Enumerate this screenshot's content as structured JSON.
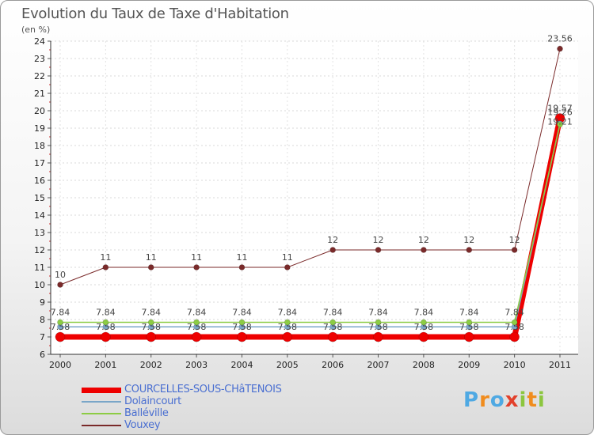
{
  "title": "Evolution du Taux de Taxe d'Habitation",
  "subtitle": "(en %)",
  "logo": {
    "p": "P",
    "r": "r",
    "o": "o",
    "x": "x",
    "i": "i",
    "t": "t",
    "i2": "i"
  },
  "chart_data": {
    "type": "line",
    "title": "Evolution du Taux de Taxe d'Habitation",
    "ylabel": "(en %)",
    "xlabel": "",
    "ylim": [
      6,
      24
    ],
    "yticks": [
      "6",
      "7",
      "8",
      "9",
      "10",
      "11",
      "12",
      "13",
      "14",
      "15",
      "16",
      "17",
      "18",
      "19",
      "20",
      "21",
      "22",
      "23",
      "24"
    ],
    "x": [
      "2000",
      "2001",
      "2002",
      "2003",
      "2004",
      "2005",
      "2006",
      "2007",
      "2008",
      "2009",
      "2010",
      "2011"
    ],
    "grid": true,
    "legend_position": "bottom-left",
    "series": [
      {
        "name": "COURCELLES-SOUS-CHâTENOIS",
        "color": "#ee0000",
        "values": [
          7,
          7,
          7,
          7,
          7,
          7,
          7,
          7,
          7,
          7,
          7,
          19.57
        ],
        "labels": [
          "",
          "",
          "",
          "",
          "",
          "",
          "",
          "",
          "",
          "",
          "",
          "19.57"
        ]
      },
      {
        "name": "Dolaincourt",
        "color": "#7aa6c8",
        "values": [
          7.58,
          7.58,
          7.58,
          7.58,
          7.58,
          7.58,
          7.58,
          7.58,
          7.58,
          7.58,
          7.58,
          19.26
        ],
        "labels": [
          "7.58",
          "7.58",
          "7.58",
          "7.58",
          "7.58",
          "7.58",
          "7.58",
          "7.58",
          "7.58",
          "7.58",
          "7.58",
          "19.26"
        ]
      },
      {
        "name": "Balléville",
        "color": "#8ccc44",
        "values": [
          7.84,
          7.84,
          7.84,
          7.84,
          7.84,
          7.84,
          7.84,
          7.84,
          7.84,
          7.84,
          7.84,
          19.21
        ],
        "labels": [
          "7.84",
          "7.84",
          "7.84",
          "7.84",
          "7.84",
          "7.84",
          "7.84",
          "7.84",
          "7.84",
          "7.84",
          "7.84",
          "19.21"
        ]
      },
      {
        "name": "Vouxey",
        "color": "#7a2a2a",
        "values": [
          10,
          11,
          11,
          11,
          11,
          11,
          12,
          12,
          12,
          12,
          12,
          23.56
        ],
        "labels": [
          "10",
          "11",
          "11",
          "11",
          "11",
          "11",
          "12",
          "12",
          "12",
          "12",
          "12",
          "23.56"
        ]
      }
    ]
  }
}
